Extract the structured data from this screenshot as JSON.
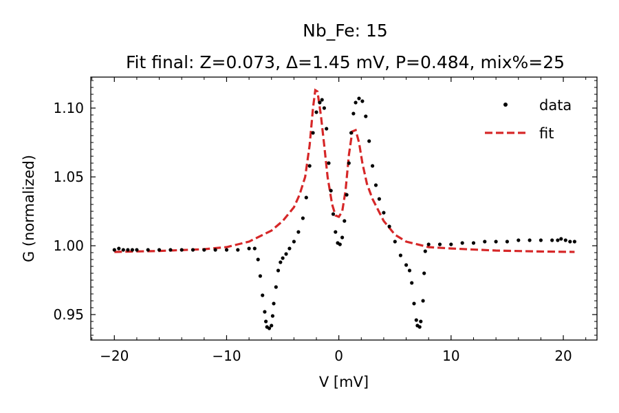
{
  "chart_data": {
    "type": "scatter",
    "title_line1": "Nb_Fe: 15",
    "title_line2": "Fit final: Z=0.073, Δ=1.45 mV, P=0.484, mix%=25",
    "xlabel": "V [mV]",
    "ylabel": "G (normalized)",
    "xlim": [
      -22.1,
      23.0
    ],
    "ylim": [
      0.9315,
      1.1225
    ],
    "xticks": [
      -20,
      -10,
      0,
      10,
      20
    ],
    "xtick_labels": [
      "−20",
      "−10",
      "0",
      "10",
      "20"
    ],
    "yticks": [
      0.95,
      1.0,
      1.05,
      1.1
    ],
    "ytick_labels": [
      "0.95",
      "1.00",
      "1.05",
      "1.10"
    ],
    "grid": false,
    "legend_position": "top-right",
    "colors": {
      "data": "#000000",
      "fit": "#d62728"
    },
    "series": [
      {
        "name": "data",
        "style": "markers",
        "points": [
          [
            -20.0,
            0.997
          ],
          [
            -19.6,
            0.998
          ],
          [
            -19.2,
            0.997
          ],
          [
            -18.8,
            0.997
          ],
          [
            -18.4,
            0.997
          ],
          [
            -18.0,
            0.997
          ],
          [
            -17.0,
            0.997
          ],
          [
            -16.0,
            0.997
          ],
          [
            -15.0,
            0.997
          ],
          [
            -14.0,
            0.997
          ],
          [
            -13.0,
            0.997
          ],
          [
            -12.0,
            0.997
          ],
          [
            -11.0,
            0.997
          ],
          [
            -10.0,
            0.997
          ],
          [
            -9.0,
            0.997
          ],
          [
            -8.0,
            0.998
          ],
          [
            -7.5,
            0.998
          ],
          [
            -7.2,
            0.99
          ],
          [
            -7.0,
            0.978
          ],
          [
            -6.8,
            0.964
          ],
          [
            -6.6,
            0.952
          ],
          [
            -6.5,
            0.945
          ],
          [
            -6.4,
            0.941
          ],
          [
            -6.2,
            0.94
          ],
          [
            -6.0,
            0.942
          ],
          [
            -5.9,
            0.949
          ],
          [
            -5.8,
            0.958
          ],
          [
            -5.6,
            0.97
          ],
          [
            -5.4,
            0.982
          ],
          [
            -5.2,
            0.988
          ],
          [
            -5.0,
            0.991
          ],
          [
            -4.7,
            0.994
          ],
          [
            -4.4,
            0.998
          ],
          [
            -4.0,
            1.003
          ],
          [
            -3.6,
            1.01
          ],
          [
            -3.2,
            1.02
          ],
          [
            -2.9,
            1.035
          ],
          [
            -2.6,
            1.058
          ],
          [
            -2.3,
            1.082
          ],
          [
            -2.0,
            1.097
          ],
          [
            -1.7,
            1.104
          ],
          [
            -1.5,
            1.106
          ],
          [
            -1.3,
            1.1
          ],
          [
            -1.1,
            1.085
          ],
          [
            -0.9,
            1.06
          ],
          [
            -0.7,
            1.04
          ],
          [
            -0.5,
            1.023
          ],
          [
            -0.3,
            1.01
          ],
          [
            -0.1,
            1.002
          ],
          [
            0.1,
            1.001
          ],
          [
            0.3,
            1.006
          ],
          [
            0.5,
            1.018
          ],
          [
            0.7,
            1.037
          ],
          [
            0.9,
            1.06
          ],
          [
            1.1,
            1.082
          ],
          [
            1.3,
            1.096
          ],
          [
            1.5,
            1.104
          ],
          [
            1.8,
            1.107
          ],
          [
            2.1,
            1.105
          ],
          [
            2.4,
            1.094
          ],
          [
            2.7,
            1.076
          ],
          [
            3.0,
            1.058
          ],
          [
            3.3,
            1.044
          ],
          [
            3.6,
            1.034
          ],
          [
            4.0,
            1.024
          ],
          [
            4.5,
            1.014
          ],
          [
            5.0,
            1.003
          ],
          [
            5.5,
            0.993
          ],
          [
            6.0,
            0.986
          ],
          [
            6.3,
            0.982
          ],
          [
            6.5,
            0.973
          ],
          [
            6.7,
            0.958
          ],
          [
            6.9,
            0.946
          ],
          [
            7.0,
            0.942
          ],
          [
            7.2,
            0.941
          ],
          [
            7.3,
            0.945
          ],
          [
            7.5,
            0.96
          ],
          [
            7.6,
            0.98
          ],
          [
            7.7,
            0.996
          ],
          [
            8.0,
            1.001
          ],
          [
            9.0,
            1.001
          ],
          [
            10.0,
            1.001
          ],
          [
            11.0,
            1.002
          ],
          [
            12.0,
            1.002
          ],
          [
            13.0,
            1.003
          ],
          [
            14.0,
            1.003
          ],
          [
            15.0,
            1.003
          ],
          [
            16.0,
            1.004
          ],
          [
            17.0,
            1.004
          ],
          [
            18.0,
            1.004
          ],
          [
            19.0,
            1.004
          ],
          [
            19.5,
            1.004
          ],
          [
            19.8,
            1.005
          ],
          [
            20.2,
            1.004
          ],
          [
            20.6,
            1.003
          ],
          [
            21.0,
            1.003
          ]
        ]
      },
      {
        "name": "fit",
        "style": "dashed-line",
        "points": [
          [
            -20.0,
            0.9955
          ],
          [
            -16.0,
            0.9962
          ],
          [
            -12.0,
            0.9975
          ],
          [
            -10.0,
            0.999
          ],
          [
            -8.0,
            1.003
          ],
          [
            -6.0,
            1.011
          ],
          [
            -5.0,
            1.018
          ],
          [
            -4.0,
            1.028
          ],
          [
            -3.5,
            1.037
          ],
          [
            -3.0,
            1.05
          ],
          [
            -2.6,
            1.073
          ],
          [
            -2.3,
            1.1
          ],
          [
            -2.1,
            1.113
          ],
          [
            -1.9,
            1.112
          ],
          [
            -1.6,
            1.095
          ],
          [
            -1.3,
            1.073
          ],
          [
            -1.0,
            1.05
          ],
          [
            -0.6,
            1.03
          ],
          [
            -0.3,
            1.022
          ],
          [
            0.0,
            1.021
          ],
          [
            0.3,
            1.025
          ],
          [
            0.6,
            1.04
          ],
          [
            0.9,
            1.066
          ],
          [
            1.2,
            1.083
          ],
          [
            1.5,
            1.084
          ],
          [
            1.8,
            1.075
          ],
          [
            2.1,
            1.06
          ],
          [
            2.5,
            1.045
          ],
          [
            3.0,
            1.034
          ],
          [
            4.0,
            1.018
          ],
          [
            5.0,
            1.008
          ],
          [
            6.0,
            1.003
          ],
          [
            8.0,
            0.999
          ],
          [
            10.0,
            0.998
          ],
          [
            14.0,
            0.9965
          ],
          [
            18.0,
            0.9958
          ],
          [
            21.0,
            0.9955
          ]
        ]
      }
    ]
  }
}
